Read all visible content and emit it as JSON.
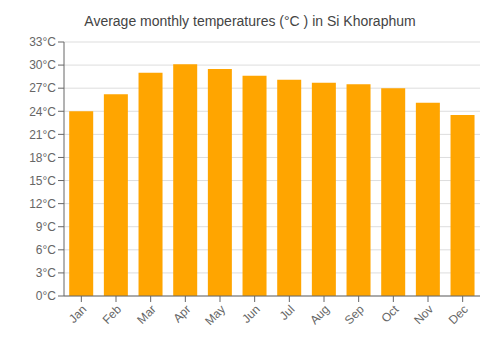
{
  "chart_data": {
    "type": "bar",
    "title": "Average monthly temperatures (°C ) in Si Khoraphum",
    "categories": [
      "Jan",
      "Feb",
      "Mar",
      "Apr",
      "May",
      "Jun",
      "Jul",
      "Aug",
      "Sep",
      "Oct",
      "Nov",
      "Dec"
    ],
    "values": [
      24.0,
      26.2,
      29.0,
      30.1,
      29.5,
      28.6,
      28.1,
      27.7,
      27.5,
      27.0,
      25.1,
      23.5
    ],
    "color": "#FFA500",
    "ylim": [
      0,
      33
    ],
    "yticks": [
      {
        "value": 0,
        "label": "0°C"
      },
      {
        "value": 3,
        "label": "3°C"
      },
      {
        "value": 6,
        "label": "6°C"
      },
      {
        "value": 9,
        "label": "9°C"
      },
      {
        "value": 12,
        "label": "12°C"
      },
      {
        "value": 15,
        "label": "15°C"
      },
      {
        "value": 18,
        "label": "18°C"
      },
      {
        "value": 21,
        "label": "21°C"
      },
      {
        "value": 24,
        "label": "24°C"
      },
      {
        "value": 27,
        "label": "27°C"
      },
      {
        "value": 30,
        "label": "30°C"
      },
      {
        "value": 33,
        "label": "33°C"
      }
    ],
    "grid": true
  }
}
